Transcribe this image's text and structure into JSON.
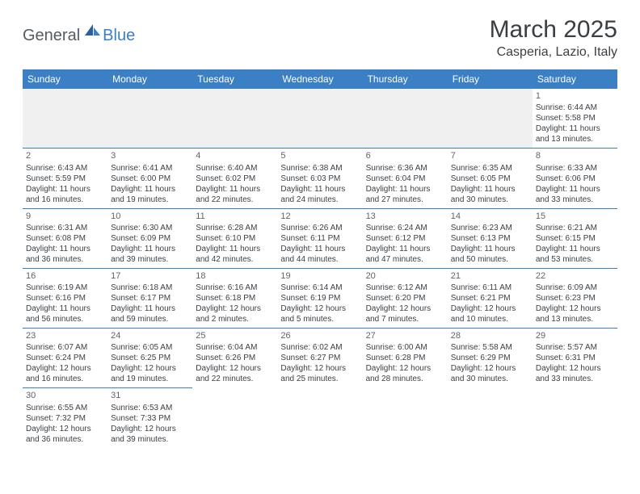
{
  "logo": {
    "general": "General",
    "blue": "Blue"
  },
  "title": "March 2025",
  "location": "Casperia, Lazio, Italy",
  "brand_color": "#3b7fc4",
  "text_color": "#3a3f44",
  "day_headers": [
    "Sunday",
    "Monday",
    "Tuesday",
    "Wednesday",
    "Thursday",
    "Friday",
    "Saturday"
  ],
  "weeks": [
    [
      null,
      null,
      null,
      null,
      null,
      null,
      {
        "n": "1",
        "sr": "Sunrise: 6:44 AM",
        "ss": "Sunset: 5:58 PM",
        "dl1": "Daylight: 11 hours",
        "dl2": "and 13 minutes."
      }
    ],
    [
      {
        "n": "2",
        "sr": "Sunrise: 6:43 AM",
        "ss": "Sunset: 5:59 PM",
        "dl1": "Daylight: 11 hours",
        "dl2": "and 16 minutes."
      },
      {
        "n": "3",
        "sr": "Sunrise: 6:41 AM",
        "ss": "Sunset: 6:00 PM",
        "dl1": "Daylight: 11 hours",
        "dl2": "and 19 minutes."
      },
      {
        "n": "4",
        "sr": "Sunrise: 6:40 AM",
        "ss": "Sunset: 6:02 PM",
        "dl1": "Daylight: 11 hours",
        "dl2": "and 22 minutes."
      },
      {
        "n": "5",
        "sr": "Sunrise: 6:38 AM",
        "ss": "Sunset: 6:03 PM",
        "dl1": "Daylight: 11 hours",
        "dl2": "and 24 minutes."
      },
      {
        "n": "6",
        "sr": "Sunrise: 6:36 AM",
        "ss": "Sunset: 6:04 PM",
        "dl1": "Daylight: 11 hours",
        "dl2": "and 27 minutes."
      },
      {
        "n": "7",
        "sr": "Sunrise: 6:35 AM",
        "ss": "Sunset: 6:05 PM",
        "dl1": "Daylight: 11 hours",
        "dl2": "and 30 minutes."
      },
      {
        "n": "8",
        "sr": "Sunrise: 6:33 AM",
        "ss": "Sunset: 6:06 PM",
        "dl1": "Daylight: 11 hours",
        "dl2": "and 33 minutes."
      }
    ],
    [
      {
        "n": "9",
        "sr": "Sunrise: 6:31 AM",
        "ss": "Sunset: 6:08 PM",
        "dl1": "Daylight: 11 hours",
        "dl2": "and 36 minutes."
      },
      {
        "n": "10",
        "sr": "Sunrise: 6:30 AM",
        "ss": "Sunset: 6:09 PM",
        "dl1": "Daylight: 11 hours",
        "dl2": "and 39 minutes."
      },
      {
        "n": "11",
        "sr": "Sunrise: 6:28 AM",
        "ss": "Sunset: 6:10 PM",
        "dl1": "Daylight: 11 hours",
        "dl2": "and 42 minutes."
      },
      {
        "n": "12",
        "sr": "Sunrise: 6:26 AM",
        "ss": "Sunset: 6:11 PM",
        "dl1": "Daylight: 11 hours",
        "dl2": "and 44 minutes."
      },
      {
        "n": "13",
        "sr": "Sunrise: 6:24 AM",
        "ss": "Sunset: 6:12 PM",
        "dl1": "Daylight: 11 hours",
        "dl2": "and 47 minutes."
      },
      {
        "n": "14",
        "sr": "Sunrise: 6:23 AM",
        "ss": "Sunset: 6:13 PM",
        "dl1": "Daylight: 11 hours",
        "dl2": "and 50 minutes."
      },
      {
        "n": "15",
        "sr": "Sunrise: 6:21 AM",
        "ss": "Sunset: 6:15 PM",
        "dl1": "Daylight: 11 hours",
        "dl2": "and 53 minutes."
      }
    ],
    [
      {
        "n": "16",
        "sr": "Sunrise: 6:19 AM",
        "ss": "Sunset: 6:16 PM",
        "dl1": "Daylight: 11 hours",
        "dl2": "and 56 minutes."
      },
      {
        "n": "17",
        "sr": "Sunrise: 6:18 AM",
        "ss": "Sunset: 6:17 PM",
        "dl1": "Daylight: 11 hours",
        "dl2": "and 59 minutes."
      },
      {
        "n": "18",
        "sr": "Sunrise: 6:16 AM",
        "ss": "Sunset: 6:18 PM",
        "dl1": "Daylight: 12 hours",
        "dl2": "and 2 minutes."
      },
      {
        "n": "19",
        "sr": "Sunrise: 6:14 AM",
        "ss": "Sunset: 6:19 PM",
        "dl1": "Daylight: 12 hours",
        "dl2": "and 5 minutes."
      },
      {
        "n": "20",
        "sr": "Sunrise: 6:12 AM",
        "ss": "Sunset: 6:20 PM",
        "dl1": "Daylight: 12 hours",
        "dl2": "and 7 minutes."
      },
      {
        "n": "21",
        "sr": "Sunrise: 6:11 AM",
        "ss": "Sunset: 6:21 PM",
        "dl1": "Daylight: 12 hours",
        "dl2": "and 10 minutes."
      },
      {
        "n": "22",
        "sr": "Sunrise: 6:09 AM",
        "ss": "Sunset: 6:23 PM",
        "dl1": "Daylight: 12 hours",
        "dl2": "and 13 minutes."
      }
    ],
    [
      {
        "n": "23",
        "sr": "Sunrise: 6:07 AM",
        "ss": "Sunset: 6:24 PM",
        "dl1": "Daylight: 12 hours",
        "dl2": "and 16 minutes."
      },
      {
        "n": "24",
        "sr": "Sunrise: 6:05 AM",
        "ss": "Sunset: 6:25 PM",
        "dl1": "Daylight: 12 hours",
        "dl2": "and 19 minutes."
      },
      {
        "n": "25",
        "sr": "Sunrise: 6:04 AM",
        "ss": "Sunset: 6:26 PM",
        "dl1": "Daylight: 12 hours",
        "dl2": "and 22 minutes."
      },
      {
        "n": "26",
        "sr": "Sunrise: 6:02 AM",
        "ss": "Sunset: 6:27 PM",
        "dl1": "Daylight: 12 hours",
        "dl2": "and 25 minutes."
      },
      {
        "n": "27",
        "sr": "Sunrise: 6:00 AM",
        "ss": "Sunset: 6:28 PM",
        "dl1": "Daylight: 12 hours",
        "dl2": "and 28 minutes."
      },
      {
        "n": "28",
        "sr": "Sunrise: 5:58 AM",
        "ss": "Sunset: 6:29 PM",
        "dl1": "Daylight: 12 hours",
        "dl2": "and 30 minutes."
      },
      {
        "n": "29",
        "sr": "Sunrise: 5:57 AM",
        "ss": "Sunset: 6:31 PM",
        "dl1": "Daylight: 12 hours",
        "dl2": "and 33 minutes."
      }
    ],
    [
      {
        "n": "30",
        "sr": "Sunrise: 6:55 AM",
        "ss": "Sunset: 7:32 PM",
        "dl1": "Daylight: 12 hours",
        "dl2": "and 36 minutes."
      },
      {
        "n": "31",
        "sr": "Sunrise: 6:53 AM",
        "ss": "Sunset: 7:33 PM",
        "dl1": "Daylight: 12 hours",
        "dl2": "and 39 minutes."
      },
      null,
      null,
      null,
      null,
      null
    ]
  ]
}
